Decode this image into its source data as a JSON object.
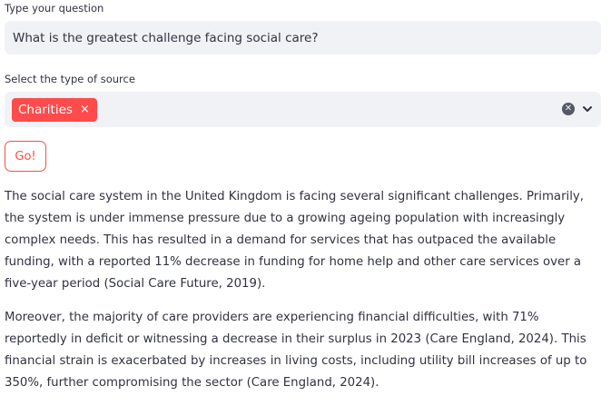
{
  "question": {
    "label": "Type your question",
    "value": "What is the greatest challenge facing social care?"
  },
  "source": {
    "label": "Select the type of source",
    "selected": [
      {
        "label": "Charities",
        "remove_glyph": "×"
      }
    ],
    "clear_icon": "clear-icon",
    "dropdown_icon": "chevron-down-icon"
  },
  "go_button": {
    "label": "Go!"
  },
  "answer": {
    "paragraphs": [
      "The social care system in the United Kingdom is facing several significant challenges. Primarily, the system is under immense pressure due to a growing ageing population with increasingly complex needs. This has resulted in a demand for services that has outpaced the available funding, with a reported 11% decrease in funding for home help and other care services over a five-year period (Social Care Future, 2019).",
      "Moreover, the majority of care providers are experiencing financial difficulties, with 71% reportedly in deficit or witnessing a decrease in their surplus in 2023 (Care England, 2024). This financial strain is exacerbated by increases in living costs, including utility bill increases of up to 350%, further compromising the sector (Care England, 2024)."
    ]
  },
  "colors": {
    "accent": "#ff4b4b",
    "input_bg": "#f0f2f6",
    "text": "#31333f"
  }
}
